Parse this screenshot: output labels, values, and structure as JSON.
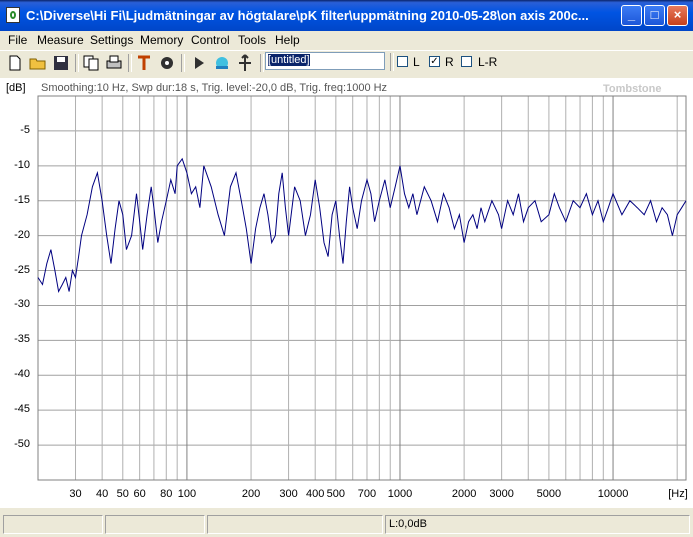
{
  "window": {
    "title": "C:\\Diverse\\Hi Fi\\Ljudmätningar av högtalare\\pK filter\\uppmätning 2010-05-28\\on axis 200c..."
  },
  "menu": [
    "File",
    "Measure",
    "Settings",
    "Memory",
    "Control",
    "Tools",
    "Help"
  ],
  "toolbar": {
    "name_field": "[untitled]",
    "checks": [
      {
        "label": "L",
        "checked": false
      },
      {
        "label": "R",
        "checked": true
      },
      {
        "label": "L-R",
        "checked": false
      }
    ]
  },
  "graph": {
    "unit": "[dB]",
    "info": "Smoothing:10 Hz, Swp dur:18 s, Trig. level:-20,0 dB, Trig. freq:1000 Hz",
    "brand": "Tombstone",
    "x_unit": "[Hz]",
    "y_ticks": [
      "-5",
      "-10",
      "-15",
      "-20",
      "-25",
      "-30",
      "-35",
      "-40",
      "-45",
      "-50"
    ],
    "x_ticks": [
      "30",
      "40",
      "50",
      "60",
      "80",
      "100",
      "200",
      "300",
      "400",
      "500",
      "700",
      "1000",
      "2000",
      "3000",
      "5000",
      "10000"
    ]
  },
  "chart_data": {
    "type": "line",
    "xscale": "log",
    "xlim": [
      20,
      22000
    ],
    "ylim": [
      -55,
      0
    ],
    "line_color": "#000080",
    "series": [
      {
        "x": [
          20,
          21,
          22,
          23,
          24,
          25,
          26,
          27,
          28,
          29,
          30,
          31,
          32,
          34,
          36,
          38,
          40,
          42,
          44,
          46,
          48,
          50,
          52,
          55,
          58,
          60,
          62,
          65,
          68,
          70,
          73,
          76,
          80,
          84,
          88,
          90,
          95,
          100,
          105,
          110,
          115,
          120,
          130,
          140,
          150,
          160,
          170,
          180,
          190,
          200,
          210,
          220,
          230,
          240,
          250,
          260,
          270,
          280,
          290,
          300,
          320,
          340,
          360,
          380,
          400,
          420,
          440,
          460,
          480,
          500,
          520,
          540,
          560,
          580,
          600,
          630,
          660,
          700,
          730,
          760,
          800,
          850,
          900,
          950,
          1000,
          1050,
          1100,
          1150,
          1200,
          1300,
          1400,
          1500,
          1600,
          1700,
          1800,
          1900,
          2000,
          2100,
          2200,
          2300,
          2400,
          2500,
          2700,
          2900,
          3000,
          3200,
          3400,
          3600,
          3800,
          4000,
          4300,
          4600,
          5000,
          5300,
          5600,
          6000,
          6500,
          7000,
          7500,
          8000,
          8500,
          9000,
          9500,
          10000,
          11000,
          12000,
          13000,
          14000,
          15000,
          16000,
          17000,
          18000,
          19000,
          20000,
          21000,
          22000
        ],
        "y": [
          -26,
          -27,
          -24,
          -22,
          -25,
          -28,
          -27,
          -26,
          -28,
          -25,
          -26,
          -23,
          -20,
          -17,
          -13,
          -11,
          -15,
          -20,
          -24,
          -19,
          -15,
          -17,
          -22,
          -20,
          -14,
          -18,
          -22,
          -17,
          -13,
          -16,
          -21,
          -18,
          -15,
          -12,
          -14,
          -10,
          -9,
          -11,
          -14,
          -13,
          -16,
          -10,
          -13,
          -17,
          -20,
          -13,
          -11,
          -15,
          -19,
          -24,
          -19,
          -16,
          -14,
          -17,
          -21,
          -20,
          -14,
          -11,
          -16,
          -20,
          -13,
          -15,
          -20,
          -17,
          -12,
          -16,
          -21,
          -23,
          -17,
          -15,
          -20,
          -24,
          -18,
          -13,
          -16,
          -19,
          -15,
          -12,
          -14,
          -18,
          -15,
          -12,
          -16,
          -13,
          -10,
          -14,
          -16,
          -14,
          -17,
          -13,
          -15,
          -18,
          -14,
          -16,
          -19,
          -17,
          -21,
          -18,
          -17,
          -19,
          -16,
          -18,
          -15,
          -17,
          -19,
          -15,
          -17,
          -14,
          -18,
          -16,
          -15,
          -18,
          -17,
          -14,
          -16,
          -18,
          -15,
          -16,
          -14,
          -17,
          -15,
          -18,
          -16,
          -14,
          -17,
          -15,
          -16,
          -17,
          -15,
          -18,
          -16,
          -17,
          -20,
          -17,
          -16,
          -15
        ]
      }
    ]
  },
  "status": {
    "value": "L:0,0dB"
  }
}
